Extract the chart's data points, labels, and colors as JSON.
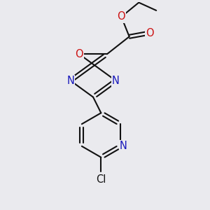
{
  "bg_color": "#eaeaee",
  "bond_color": "#111111",
  "bond_width": 1.5,
  "atom_colors": {
    "N": "#1818bb",
    "O": "#cc1111",
    "Cl": "#111111"
  },
  "font_size": 10.5
}
